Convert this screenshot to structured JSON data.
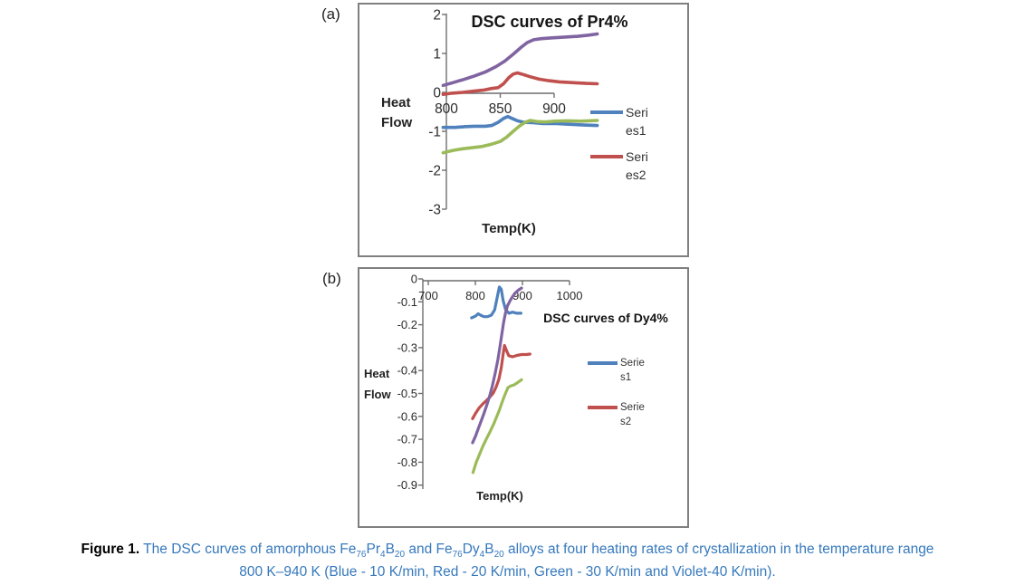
{
  "page": {
    "panel_a_label": "(a)",
    "panel_b_label": "(b)"
  },
  "caption": {
    "line1_segments": [
      {
        "t": "Figure 1.",
        "b": true
      },
      {
        "t": " The DSC curves of amorphous Fe"
      },
      {
        "t": "76",
        "s": true
      },
      {
        "t": "Pr"
      },
      {
        "t": "4",
        "s": true
      },
      {
        "t": "B"
      },
      {
        "t": "20",
        "s": true
      },
      {
        "t": " and Fe"
      },
      {
        "t": "76",
        "s": true
      },
      {
        "t": "Dy"
      },
      {
        "t": "4",
        "s": true
      },
      {
        "t": "B"
      },
      {
        "t": "20",
        "s": true
      },
      {
        "t": " alloys at four heating rates of crystallization in the temperature range"
      }
    ],
    "line2": "800 K–940 K (Blue - 10 K/min, Red - 20 K/min, Green - 30 K/min and Violet-40 K/min).",
    "text_color": "#3679bd"
  },
  "chart_data": [
    {
      "id": "pr4",
      "type": "line",
      "title": "DSC curves of Pr4%",
      "xlabel": "Temp(K)",
      "ylabel_lines": [
        "Heat",
        "Flow"
      ],
      "x_ticks": [
        800,
        850,
        900
      ],
      "y_ticks": [
        2,
        1,
        0,
        -1,
        -2,
        -3
      ],
      "xlim": [
        795,
        940
      ],
      "ylim": [
        -3,
        2
      ],
      "grid": false,
      "legend_position": "right",
      "legend": [
        {
          "full": "Series1",
          "lines": [
            "Seri",
            "es1"
          ],
          "color": "#4F81BD"
        },
        {
          "full": "Series2",
          "lines": [
            "Seri",
            "es2"
          ],
          "color": "#C0504D"
        }
      ],
      "series": [
        {
          "name": "Series1",
          "color_name": "Blue",
          "rate": "10 K/min",
          "color": "#4F81BD",
          "points": [
            [
              797,
              -0.9
            ],
            [
              808,
              -0.9
            ],
            [
              818,
              -0.88
            ],
            [
              826,
              -0.87
            ],
            [
              836,
              -0.87
            ],
            [
              842,
              -0.85
            ],
            [
              848,
              -0.77
            ],
            [
              853,
              -0.67
            ],
            [
              857,
              -0.62
            ],
            [
              861,
              -0.67
            ],
            [
              866,
              -0.73
            ],
            [
              872,
              -0.77
            ],
            [
              880,
              -0.78
            ],
            [
              890,
              -0.8
            ],
            [
              902,
              -0.8
            ],
            [
              915,
              -0.82
            ],
            [
              928,
              -0.84
            ],
            [
              940,
              -0.85
            ]
          ]
        },
        {
          "name": "Series2",
          "color_name": "Red",
          "rate": "20 K/min",
          "color": "#C0504D",
          "points": [
            [
              797,
              -0.05
            ],
            [
              805,
              -0.02
            ],
            [
              815,
              0.0
            ],
            [
              825,
              0.03
            ],
            [
              835,
              0.06
            ],
            [
              842,
              0.1
            ],
            [
              848,
              0.12
            ],
            [
              853,
              0.22
            ],
            [
              858,
              0.38
            ],
            [
              862,
              0.47
            ],
            [
              866,
              0.5
            ],
            [
              871,
              0.46
            ],
            [
              878,
              0.4
            ],
            [
              886,
              0.34
            ],
            [
              895,
              0.3
            ],
            [
              905,
              0.27
            ],
            [
              918,
              0.25
            ],
            [
              930,
              0.23
            ],
            [
              940,
              0.22
            ]
          ]
        },
        {
          "name": "",
          "color_name": "Green",
          "rate": "30 K/min",
          "color": "#9BBB59",
          "points": [
            [
              797,
              -1.55
            ],
            [
              806,
              -1.49
            ],
            [
              815,
              -1.45
            ],
            [
              824,
              -1.42
            ],
            [
              833,
              -1.39
            ],
            [
              842,
              -1.33
            ],
            [
              850,
              -1.26
            ],
            [
              856,
              -1.15
            ],
            [
              862,
              -1.0
            ],
            [
              868,
              -0.86
            ],
            [
              873,
              -0.77
            ],
            [
              878,
              -0.72
            ],
            [
              884,
              -0.75
            ],
            [
              892,
              -0.76
            ],
            [
              900,
              -0.74
            ],
            [
              912,
              -0.73
            ],
            [
              925,
              -0.74
            ],
            [
              940,
              -0.72
            ]
          ]
        },
        {
          "name": "",
          "color_name": "Violet",
          "rate": "40 K/min",
          "color": "#8064A2",
          "points": [
            [
              797,
              0.18
            ],
            [
              806,
              0.25
            ],
            [
              816,
              0.33
            ],
            [
              826,
              0.42
            ],
            [
              836,
              0.52
            ],
            [
              846,
              0.66
            ],
            [
              854,
              0.8
            ],
            [
              862,
              0.98
            ],
            [
              869,
              1.15
            ],
            [
              875,
              1.28
            ],
            [
              881,
              1.35
            ],
            [
              888,
              1.38
            ],
            [
              898,
              1.4
            ],
            [
              910,
              1.42
            ],
            [
              922,
              1.44
            ],
            [
              932,
              1.47
            ],
            [
              940,
              1.5
            ]
          ]
        }
      ]
    },
    {
      "id": "dy4",
      "type": "line",
      "title": "DSC curves of Dy4%",
      "xlabel": "Temp(K)",
      "ylabel_lines": [
        "Heat",
        "Flow"
      ],
      "x_ticks": [
        700,
        800,
        900,
        1000
      ],
      "y_ticks": [
        0,
        -0.1,
        -0.2,
        -0.3,
        -0.4,
        -0.5,
        -0.6,
        -0.7,
        -0.8,
        -0.9
      ],
      "xlim": [
        700,
        1000
      ],
      "ylim": [
        -0.9,
        0
      ],
      "grid": false,
      "legend_position": "right",
      "legend": [
        {
          "full": "Series1",
          "lines": [
            "Serie",
            "s1"
          ],
          "color": "#4F81BD"
        },
        {
          "full": "Series2",
          "lines": [
            "Serie",
            "s2"
          ],
          "color": "#C0504D"
        }
      ],
      "series": [
        {
          "name": "Series1",
          "color_name": "Blue",
          "rate": "10 K/min",
          "color": "#4F81BD",
          "points": [
            [
              792,
              -0.17
            ],
            [
              800,
              -0.163
            ],
            [
              806,
              -0.152
            ],
            [
              811,
              -0.158
            ],
            [
              818,
              -0.165
            ],
            [
              826,
              -0.165
            ],
            [
              834,
              -0.158
            ],
            [
              841,
              -0.135
            ],
            [
              846,
              -0.085
            ],
            [
              851,
              -0.035
            ],
            [
              855,
              -0.045
            ],
            [
              859,
              -0.095
            ],
            [
              864,
              -0.133
            ],
            [
              871,
              -0.15
            ],
            [
              879,
              -0.145
            ],
            [
              888,
              -0.15
            ],
            [
              897,
              -0.15
            ]
          ]
        },
        {
          "name": "Series2",
          "color_name": "Red",
          "rate": "20 K/min",
          "color": "#C0504D",
          "points": [
            [
              794,
              -0.61
            ],
            [
              801,
              -0.585
            ],
            [
              808,
              -0.563
            ],
            [
              816,
              -0.545
            ],
            [
              824,
              -0.53
            ],
            [
              831,
              -0.515
            ],
            [
              838,
              -0.498
            ],
            [
              844,
              -0.472
            ],
            [
              850,
              -0.438
            ],
            [
              855,
              -0.388
            ],
            [
              859,
              -0.328
            ],
            [
              862,
              -0.29
            ],
            [
              866,
              -0.312
            ],
            [
              871,
              -0.335
            ],
            [
              879,
              -0.34
            ],
            [
              888,
              -0.334
            ],
            [
              898,
              -0.33
            ],
            [
              908,
              -0.33
            ],
            [
              916,
              -0.328
            ]
          ]
        },
        {
          "name": "",
          "color_name": "Green",
          "rate": "30 K/min",
          "color": "#9BBB59",
          "points": [
            [
              795,
              -0.845
            ],
            [
              802,
              -0.8
            ],
            [
              809,
              -0.765
            ],
            [
              816,
              -0.73
            ],
            [
              823,
              -0.7
            ],
            [
              831,
              -0.668
            ],
            [
              839,
              -0.633
            ],
            [
              846,
              -0.598
            ],
            [
              851,
              -0.573
            ],
            [
              856,
              -0.543
            ],
            [
              861,
              -0.515
            ],
            [
              865,
              -0.495
            ],
            [
              869,
              -0.475
            ],
            [
              874,
              -0.468
            ],
            [
              882,
              -0.463
            ],
            [
              890,
              -0.452
            ],
            [
              898,
              -0.44
            ]
          ]
        },
        {
          "name": "",
          "color_name": "Violet",
          "rate": "40 K/min",
          "color": "#8064A2",
          "points": [
            [
              794,
              -0.715
            ],
            [
              800,
              -0.688
            ],
            [
              806,
              -0.655
            ],
            [
              812,
              -0.622
            ],
            [
              818,
              -0.588
            ],
            [
              824,
              -0.552
            ],
            [
              830,
              -0.514
            ],
            [
              836,
              -0.468
            ],
            [
              842,
              -0.414
            ],
            [
              848,
              -0.35
            ],
            [
              852,
              -0.3
            ],
            [
              856,
              -0.245
            ],
            [
              860,
              -0.19
            ],
            [
              864,
              -0.148
            ],
            [
              868,
              -0.118
            ],
            [
              874,
              -0.094
            ],
            [
              880,
              -0.074
            ],
            [
              886,
              -0.059
            ],
            [
              892,
              -0.048
            ],
            [
              898,
              -0.04
            ]
          ]
        }
      ]
    }
  ]
}
